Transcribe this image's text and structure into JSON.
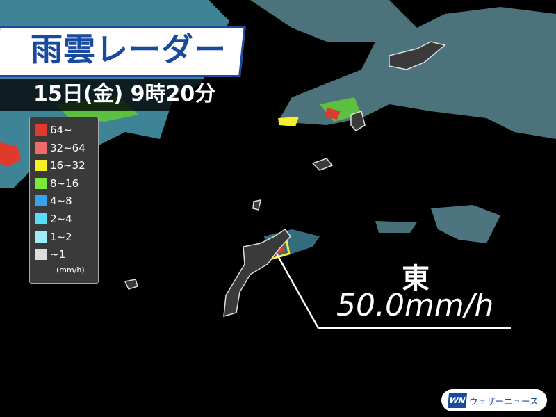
{
  "title": "雨雲レーダー",
  "timestamp": "15日(金) 9時20分",
  "legend": {
    "items": [
      {
        "label": "64~",
        "color": "#e03a2e"
      },
      {
        "label": "32~64",
        "color": "#ee6b6b"
      },
      {
        "label": "16~32",
        "color": "#f5ee2a"
      },
      {
        "label": "8~16",
        "color": "#7ee83a"
      },
      {
        "label": "4~8",
        "color": "#3aa0f0"
      },
      {
        "label": "2~4",
        "color": "#5adcf5"
      },
      {
        "label": "1~2",
        "color": "#a0eafa"
      },
      {
        "label": "~1",
        "color": "#dcdcdc"
      }
    ],
    "unit": "(mm/h)"
  },
  "annotation": {
    "place": "東",
    "value": "50.0mm/h"
  },
  "logo": {
    "mark": "WN",
    "text": "ウェザーニュース"
  },
  "colors": {
    "brand": "#1a4aa0",
    "land": "#3a3a3a",
    "sea": "#000000"
  }
}
